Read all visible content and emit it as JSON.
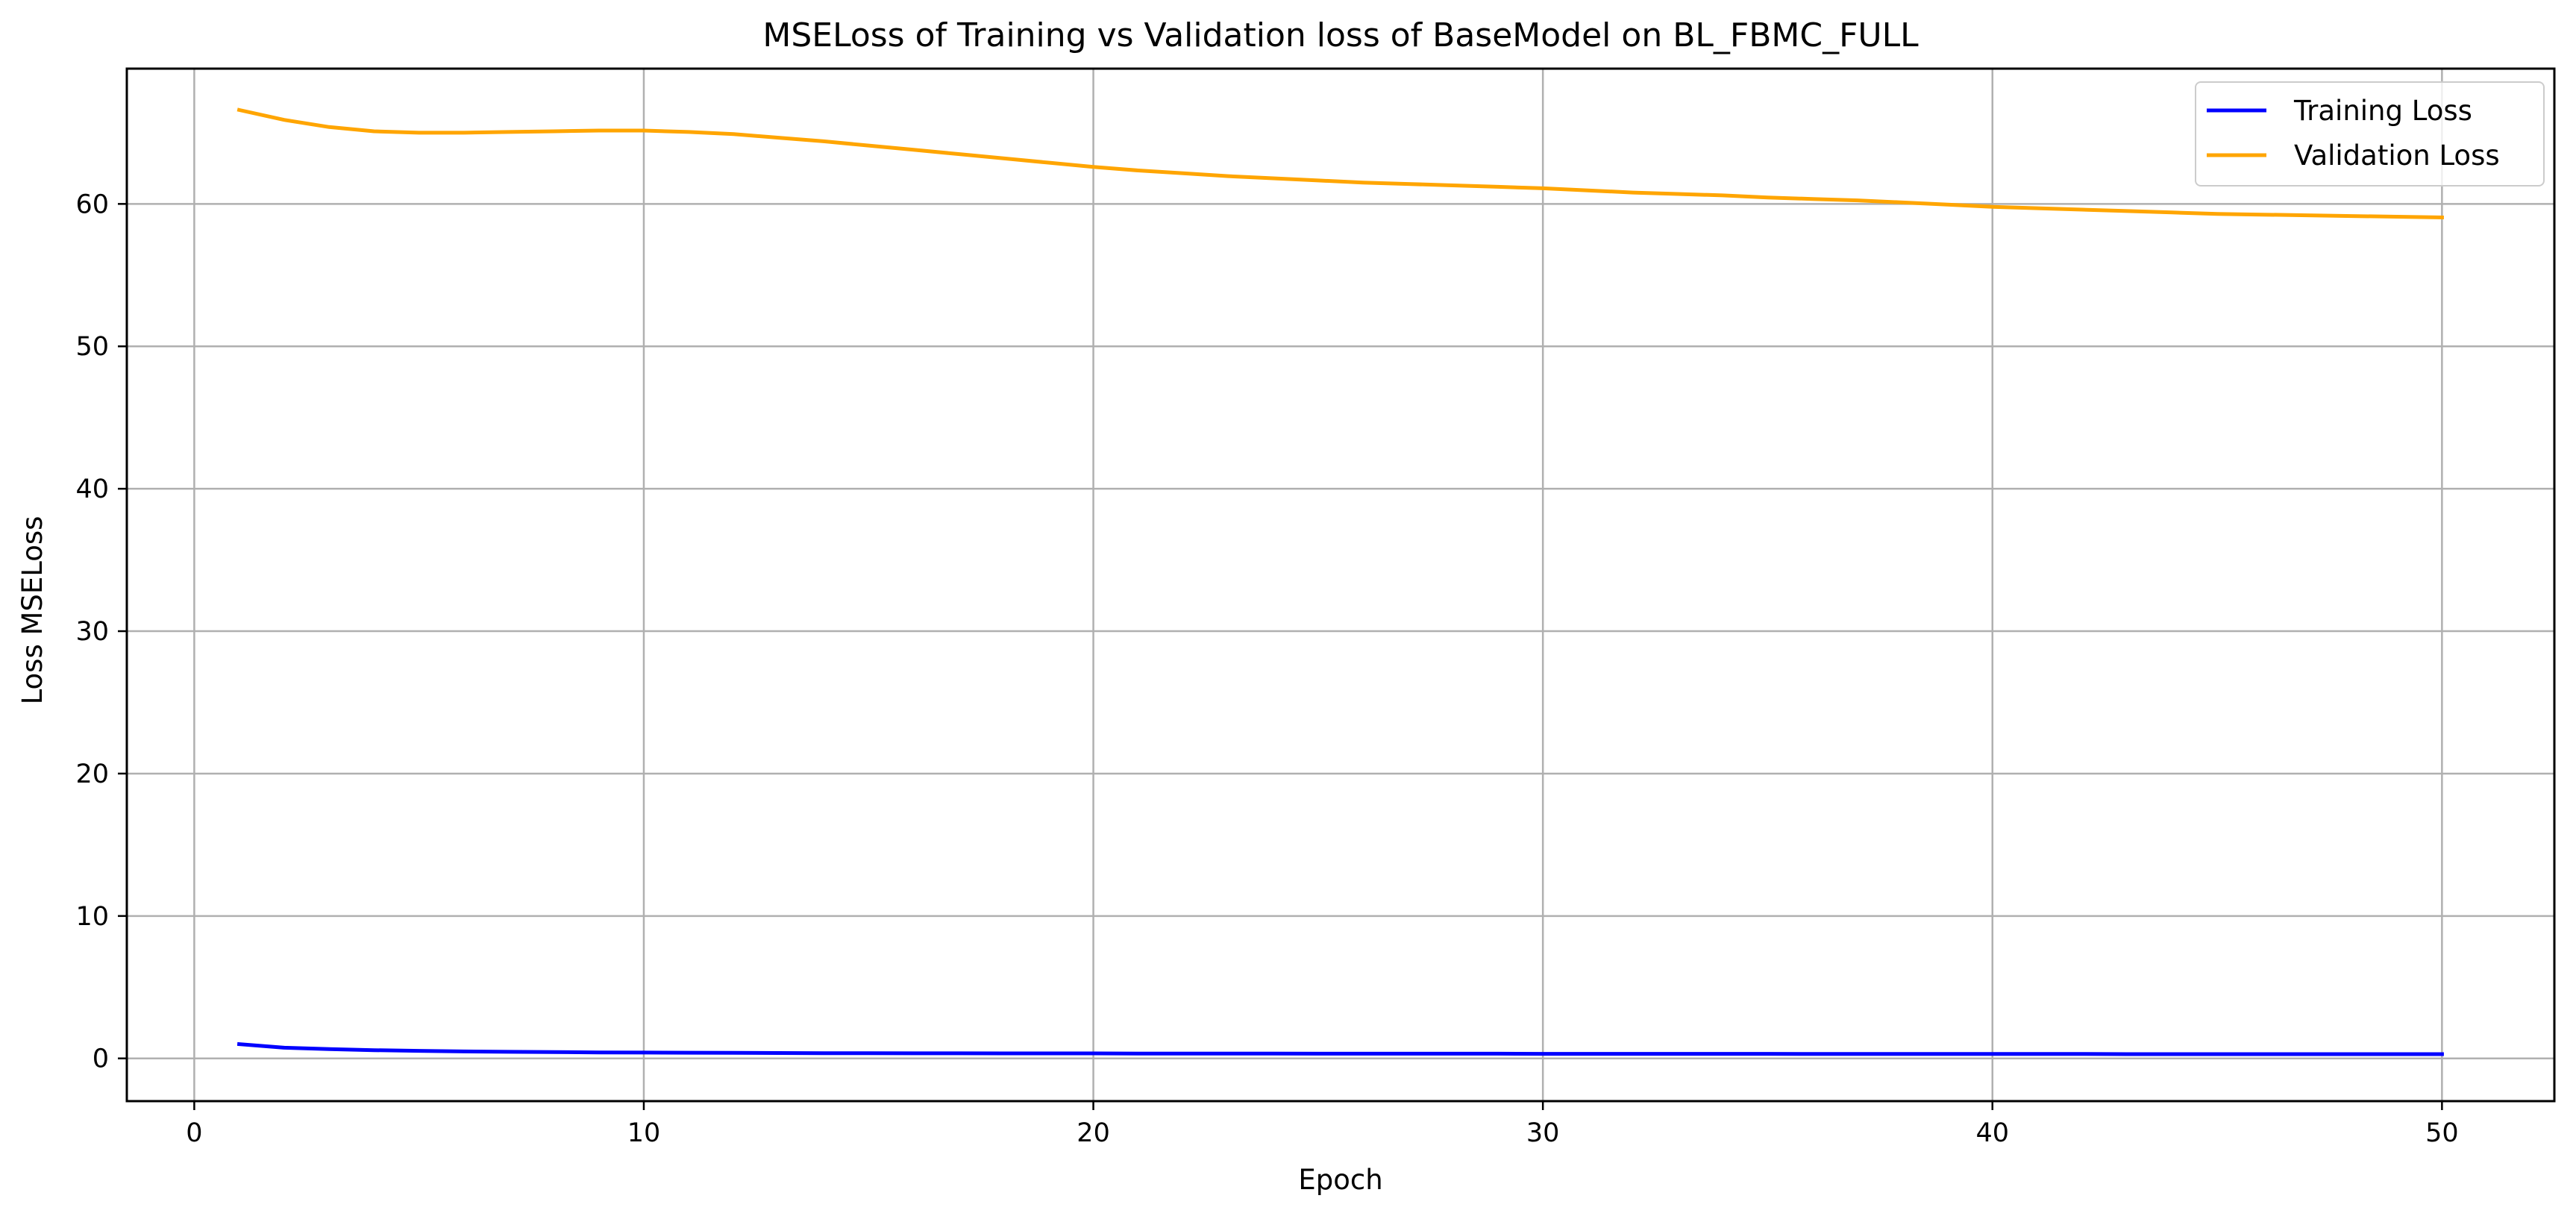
{
  "chart_data": {
    "type": "line",
    "title": "MSELoss of Training vs Validation loss of BaseModel on BL_FBMC_FULL",
    "xlabel": "Epoch",
    "ylabel": "Loss MSELoss",
    "xlim": [
      -1.5,
      52.5
    ],
    "ylim": [
      -3,
      69.5
    ],
    "xticks": [
      0,
      10,
      20,
      30,
      40,
      50
    ],
    "yticks": [
      0,
      10,
      20,
      30,
      40,
      50,
      60
    ],
    "grid": true,
    "legend_position": "top-right",
    "x": [
      1,
      2,
      3,
      4,
      5,
      6,
      7,
      8,
      9,
      10,
      11,
      12,
      13,
      14,
      15,
      16,
      17,
      18,
      19,
      20,
      21,
      22,
      23,
      24,
      25,
      26,
      27,
      28,
      29,
      30,
      31,
      32,
      33,
      34,
      35,
      36,
      37,
      38,
      39,
      40,
      41,
      42,
      43,
      44,
      45,
      46,
      47,
      48,
      49,
      50
    ],
    "series": [
      {
        "name": "Training Loss",
        "color": "#0000ff",
        "values": [
          1.0,
          0.75,
          0.65,
          0.58,
          0.53,
          0.49,
          0.46,
          0.44,
          0.42,
          0.41,
          0.4,
          0.39,
          0.38,
          0.37,
          0.37,
          0.36,
          0.36,
          0.35,
          0.35,
          0.35,
          0.34,
          0.34,
          0.34,
          0.34,
          0.33,
          0.33,
          0.33,
          0.33,
          0.33,
          0.32,
          0.32,
          0.32,
          0.32,
          0.32,
          0.32,
          0.31,
          0.31,
          0.31,
          0.31,
          0.31,
          0.31,
          0.31,
          0.3,
          0.3,
          0.3,
          0.3,
          0.3,
          0.3,
          0.3,
          0.3
        ]
      },
      {
        "name": "Validation Loss",
        "color": "#ffa500",
        "values": [
          66.6,
          65.9,
          65.4,
          65.1,
          65.0,
          65.0,
          65.05,
          65.1,
          65.15,
          65.15,
          65.05,
          64.9,
          64.65,
          64.4,
          64.1,
          63.8,
          63.5,
          63.2,
          62.9,
          62.6,
          62.35,
          62.15,
          61.95,
          61.8,
          61.65,
          61.5,
          61.4,
          61.3,
          61.2,
          61.1,
          60.95,
          60.8,
          60.7,
          60.6,
          60.45,
          60.35,
          60.25,
          60.1,
          59.95,
          59.8,
          59.7,
          59.6,
          59.5,
          59.4,
          59.3,
          59.25,
          59.2,
          59.15,
          59.1,
          59.05
        ]
      }
    ]
  }
}
